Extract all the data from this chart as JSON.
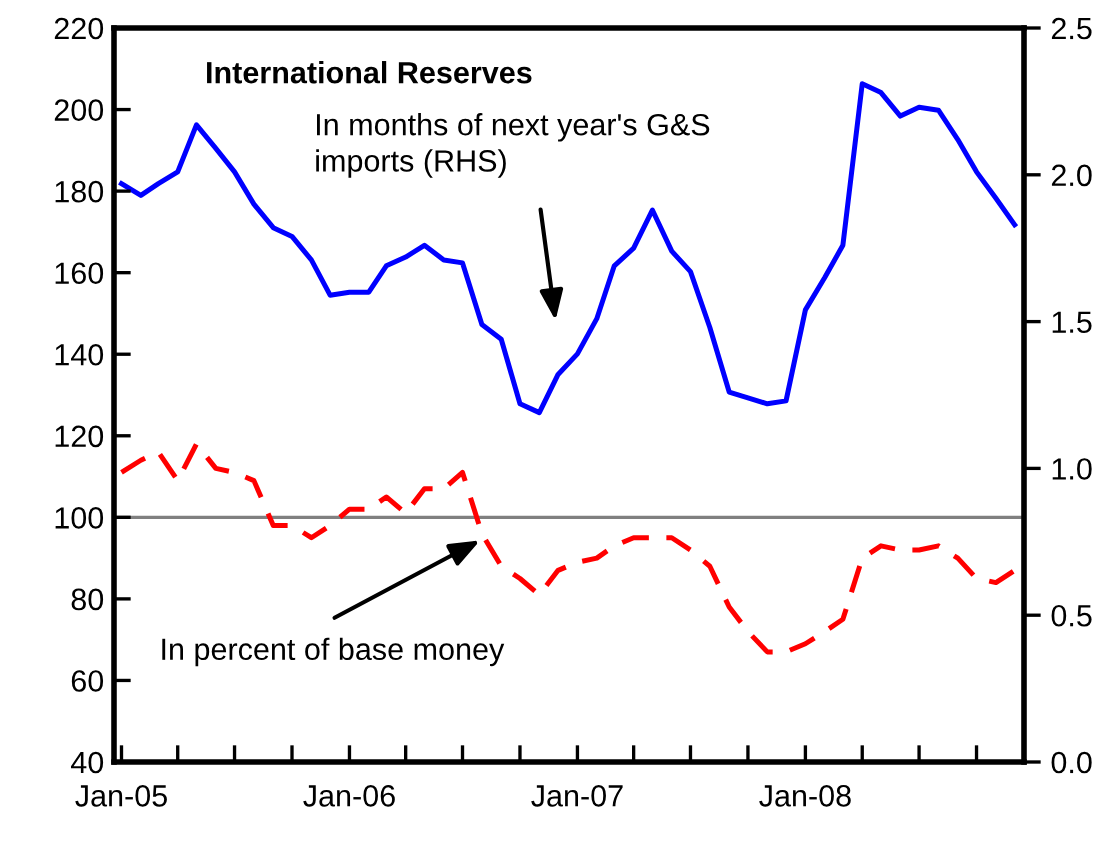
{
  "chart_data": {
    "type": "line",
    "title": "International Reserves",
    "x": [
      "2005-01",
      "2005-02",
      "2005-03",
      "2005-04",
      "2005-05",
      "2005-06",
      "2005-07",
      "2005-08",
      "2005-09",
      "2005-10",
      "2005-11",
      "2005-12",
      "2006-01",
      "2006-02",
      "2006-03",
      "2006-04",
      "2006-05",
      "2006-06",
      "2006-07",
      "2006-08",
      "2006-09",
      "2006-10",
      "2006-11",
      "2006-12",
      "2007-01",
      "2007-02",
      "2007-03",
      "2007-04",
      "2007-05",
      "2007-06",
      "2007-07",
      "2007-08",
      "2007-09",
      "2007-10",
      "2007-11",
      "2007-12",
      "2008-01",
      "2008-02",
      "2008-03",
      "2008-04",
      "2008-05",
      "2008-06",
      "2008-07",
      "2008-08",
      "2008-09",
      "2008-10",
      "2008-11",
      "2008-12"
    ],
    "series": [
      {
        "color": "#0000ff",
        "axis": "y2",
        "line_style": "solid",
        "values": [
          1.97,
          1.93,
          1.97,
          2.01,
          2.17,
          2.09,
          2.01,
          1.9,
          1.82,
          1.79,
          1.71,
          1.59,
          1.6,
          1.6,
          1.69,
          1.72,
          1.76,
          1.71,
          1.7,
          1.49,
          1.44,
          1.22,
          1.19,
          1.32,
          1.39,
          1.51,
          1.69,
          1.75,
          1.88,
          1.74,
          1.67,
          1.48,
          1.26,
          1.24,
          1.22,
          1.23,
          1.54,
          1.65,
          1.76,
          2.31,
          2.28,
          2.2,
          2.23,
          2.22,
          2.12,
          2.01,
          1.92,
          1.83
        ]
      },
      {
        "color": "#ff0000",
        "line_style": "dashed",
        "values": [
          111,
          114,
          116,
          109,
          118,
          112,
          111,
          109,
          98,
          98,
          95,
          98,
          102,
          102,
          105,
          101,
          107,
          107,
          111,
          96,
          88,
          85,
          81,
          87,
          89,
          90,
          93,
          95,
          95,
          95,
          92,
          88,
          78,
          72,
          67,
          67,
          69,
          72,
          75,
          90,
          93,
          92,
          92,
          93,
          90,
          85,
          84,
          87
        ]
      }
    ],
    "xlim": [
      "2004-12-20",
      "2008-12-16"
    ],
    "xticks": [
      {
        "value": "2005-01",
        "label": "Jan-05"
      },
      {
        "value": "2005-04",
        "label": null
      },
      {
        "value": "2005-07",
        "label": null
      },
      {
        "value": "2005-10",
        "label": null
      },
      {
        "value": "2006-01",
        "label": "Jan-06"
      },
      {
        "value": "2006-04",
        "label": null
      },
      {
        "value": "2006-07",
        "label": null
      },
      {
        "value": "2006-10",
        "label": null
      },
      {
        "value": "2007-01",
        "label": "Jan-07"
      },
      {
        "value": "2007-04",
        "label": null
      },
      {
        "value": "2007-07",
        "label": null
      },
      {
        "value": "2007-10",
        "label": null
      },
      {
        "value": "2008-01",
        "label": "Jan-08"
      },
      {
        "value": "2008-04",
        "label": null
      },
      {
        "value": "2008-07",
        "label": null
      },
      {
        "value": "2008-10",
        "label": null
      }
    ],
    "ylim": [
      40,
      220
    ],
    "yticks": [
      40,
      60,
      80,
      100,
      120,
      140,
      160,
      180,
      200,
      220
    ],
    "y2lim": [
      0,
      2.5
    ],
    "y2ticks": [
      {
        "value": 0,
        "label": "0.0"
      },
      {
        "value": 0.5,
        "label": "0.5"
      },
      {
        "value": 1,
        "label": "1.0"
      },
      {
        "value": 1.5,
        "label": "1.5"
      },
      {
        "value": 2,
        "label": "2.0"
      },
      {
        "value": 2.5,
        "label": "2.5"
      }
    ],
    "ref_lines": [
      {
        "axis": "y",
        "value": 100,
        "color": "#808080"
      }
    ],
    "annotations": [
      "In months of next year's G&S\nimports (RHS)",
      {
        "text": "In percent of base money",
        "x": "2006-08-06",
        "y": 95
      }
    ],
    "grid": false,
    "legend": false
  }
}
